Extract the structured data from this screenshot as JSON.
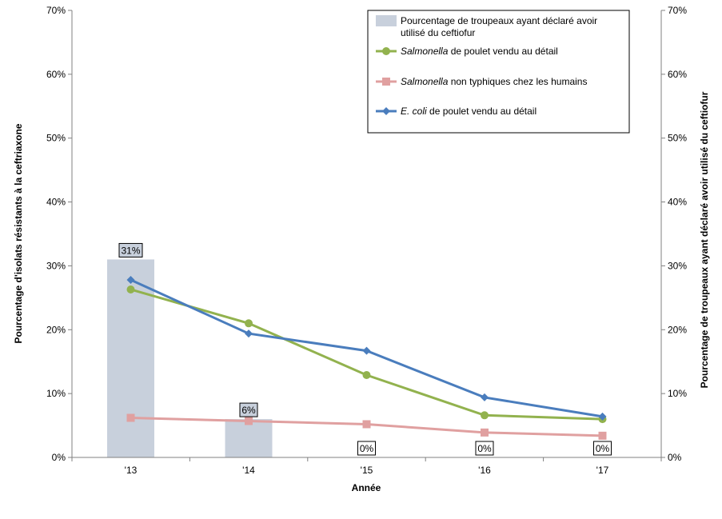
{
  "chart_data": {
    "type": "bar",
    "categories": [
      "'13",
      "'14",
      "'15",
      "'16",
      "'17"
    ],
    "xlabel": "Année",
    "ylabel_left": "Pourcentage d'isolats résistants à la ceftriaxone",
    "ylabel_right": "Pourcentage de troupeaux ayant déclaré avoir utilisé du ceftiofur",
    "ylim": [
      0,
      70
    ],
    "y_ticks": [
      "0%",
      "10%",
      "20%",
      "30%",
      "40%",
      "50%",
      "60%",
      "70%"
    ],
    "bar_series": {
      "name_lines": [
        "Pourcentage de troupeaux ayant déclaré avoir",
        "utilisé du ceftiofur"
      ],
      "values": [
        31,
        6,
        0,
        0,
        0
      ],
      "labels": [
        "31%",
        "6%",
        "0%",
        "0%",
        "0%"
      ],
      "color": "#c8d0dc"
    },
    "line_series": [
      {
        "name_italic": "Salmonella",
        "name_rest": " de poulet vendu au détail",
        "values": [
          26.3,
          21.0,
          12.9,
          6.6,
          6.0
        ],
        "color": "#92b24e",
        "marker": "circle"
      },
      {
        "name_italic": "Salmonella",
        "name_rest": "  non typhiques chez les humains",
        "values": [
          6.2,
          5.7,
          5.2,
          3.9,
          3.4
        ],
        "color": "#e0a0a0",
        "marker": "square"
      },
      {
        "name_italic": "E. coli",
        "name_rest": " de poulet vendu au détail",
        "values": [
          27.8,
          19.4,
          16.7,
          9.4,
          6.4
        ],
        "color": "#4a7dbd",
        "marker": "diamond"
      }
    ],
    "legend_position": "top-right",
    "grid": false
  }
}
